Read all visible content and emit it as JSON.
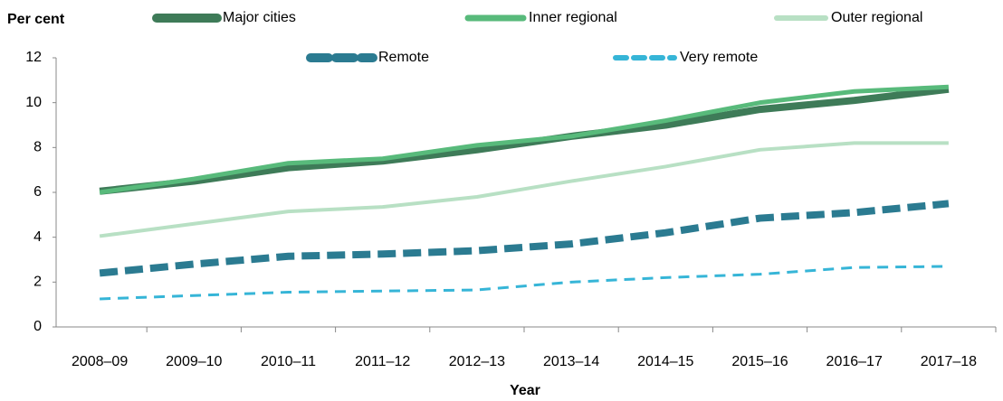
{
  "chart_data": {
    "type": "line",
    "y_label": "Per cent",
    "x_label": "Year",
    "categories": [
      "2008–09",
      "2009–10",
      "2010–11",
      "2011–12",
      "2012–13",
      "2013–14",
      "2014–15",
      "2015–16",
      "2016–17",
      "2017–18"
    ],
    "series": [
      {
        "name": "Major cities",
        "color": "#3e7b58",
        "width": 8,
        "dashed": false,
        "values": [
          6.05,
          6.5,
          7.1,
          7.4,
          7.9,
          8.5,
          9.0,
          9.7,
          10.1,
          10.6
        ]
      },
      {
        "name": "Inner regional",
        "color": "#58ba7b",
        "width": 5,
        "dashed": false,
        "values": [
          6.0,
          6.6,
          7.3,
          7.5,
          8.1,
          8.5,
          9.2,
          10.0,
          10.5,
          10.7
        ]
      },
      {
        "name": "Outer regional",
        "color": "#b8e0c4",
        "width": 4,
        "dashed": false,
        "values": [
          4.05,
          4.6,
          5.15,
          5.35,
          5.8,
          6.5,
          7.15,
          7.9,
          8.2,
          8.2
        ]
      },
      {
        "name": "Remote",
        "color": "#2b7b91",
        "width": 8,
        "dashed": true,
        "values": [
          2.4,
          2.8,
          3.15,
          3.25,
          3.4,
          3.7,
          4.2,
          4.85,
          5.1,
          5.5
        ]
      },
      {
        "name": "Very remote",
        "color": "#36b5d7",
        "width": 3,
        "dashed": true,
        "values": [
          1.25,
          1.4,
          1.55,
          1.6,
          1.65,
          2.0,
          2.2,
          2.35,
          2.65,
          2.7
        ]
      }
    ],
    "ylim": [
      0,
      12
    ],
    "yticks": [
      0,
      2,
      4,
      6,
      8,
      10,
      12
    ]
  }
}
